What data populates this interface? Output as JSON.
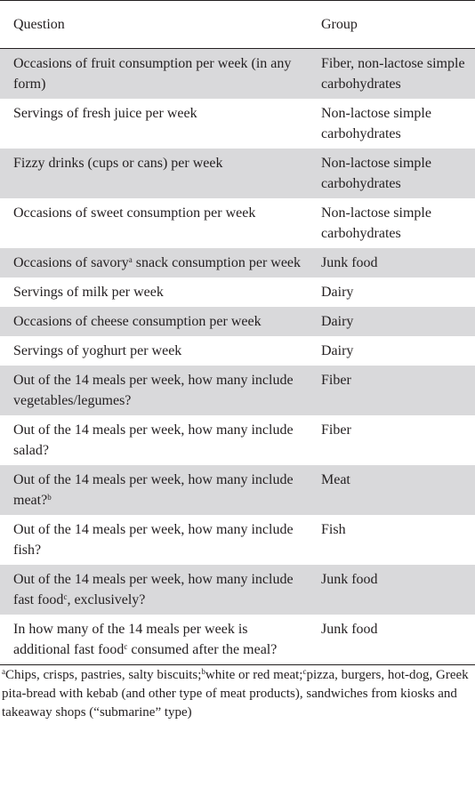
{
  "table": {
    "headers": {
      "question": "Question",
      "group": "Group"
    },
    "rows": [
      {
        "question": "Occasions of fruit consumption per week (in any form)",
        "group": "Fiber, non-lactose simple carbohydrates"
      },
      {
        "question": "Servings of fresh juice per week",
        "group": "Non-lactose simple carbohydrates"
      },
      {
        "question": "Fizzy drinks (cups or cans) per week",
        "group": "Non-lactose simple carbohydrates"
      },
      {
        "question": "Occasions of sweet consumption per week",
        "group": "Non-lactose simple carbohydrates"
      },
      {
        "question_before": "Occasions of savory",
        "question_sup": "a",
        "question_after": " snack consumption per week",
        "group": "Junk food"
      },
      {
        "question": "Servings of milk per week",
        "group": "Dairy"
      },
      {
        "question": "Occasions of cheese consumption per week",
        "group": "Dairy"
      },
      {
        "question": "Servings of yoghurt per week",
        "group": "Dairy"
      },
      {
        "question": "Out of the 14 meals per week, how many include vegetables/legumes?",
        "group": "Fiber"
      },
      {
        "question": "Out of the 14 meals per week, how many include salad?",
        "group": "Fiber"
      },
      {
        "question_before": "Out of the 14 meals per week, how many include meat?",
        "question_sup": "b",
        "question_after": "",
        "group": "Meat"
      },
      {
        "question": "Out of the 14 meals per week, how many include fish?",
        "group": "Fish"
      },
      {
        "question_before": "Out of the 14 meals per week, how many include fast food",
        "question_sup": "c",
        "question_after": ", exclusively?",
        "group": "Junk food"
      },
      {
        "question_before": "In how many of the 14 meals per week is additional fast food",
        "question_sup": "c",
        "question_after": " consumed after the meal?",
        "group": "Junk food"
      }
    ]
  },
  "footnotes": {
    "a_mark": "a",
    "a_text": "Chips, crisps, pastries, salty biscuits;",
    "b_mark": "b",
    "b_text": "white or red meat;",
    "c_mark": "c",
    "c_text": "pizza, burgers, hot-dog, Greek pita-bread with kebab (and other type of meat products), sandwiches from kiosks and takeaway shops (“submarine” type)"
  }
}
